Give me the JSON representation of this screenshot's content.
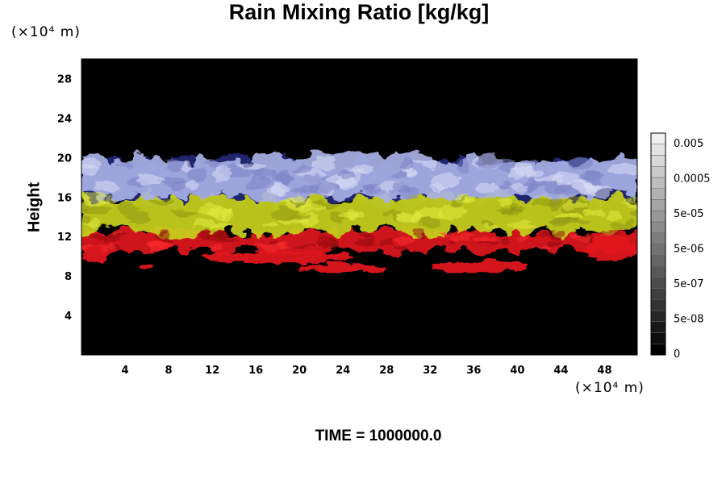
{
  "chart_data": {
    "type": "heatmap",
    "title": "Rain Mixing Ratio [kg/kg]",
    "ylabel": "Height",
    "x_unit_label": "(×10⁴ m)",
    "y_unit_label": "(×10⁴ m)",
    "xlim": [
      0,
      51
    ],
    "ylim": [
      0,
      30
    ],
    "x_ticks": [
      4,
      8,
      12,
      16,
      20,
      24,
      28,
      32,
      36,
      40,
      44,
      48
    ],
    "y_ticks": [
      4,
      8,
      12,
      16,
      20,
      24,
      28
    ],
    "colorbar": {
      "labels": [
        "0",
        "5e-08",
        "5e-07",
        "5e-06",
        "5e-05",
        "0.0005",
        "0.005"
      ],
      "low_color": "#000000",
      "high_color": "#ffffff"
    },
    "bands": [
      {
        "name": "blue-white",
        "color": "#a8b0e6",
        "y_range": [
          16,
          20
        ]
      },
      {
        "name": "yellow",
        "color": "#c8d21c",
        "y_range": [
          12.5,
          16
        ]
      },
      {
        "name": "red",
        "color": "#e0141c",
        "y_range": [
          10.5,
          12.5
        ]
      },
      {
        "name": "dark-blue",
        "color": "#222a7a",
        "y_range": [
          15.5,
          19.5
        ]
      }
    ],
    "red_patches": [
      {
        "x_range": [
          0,
          2.5
        ],
        "y_range": [
          9.5,
          11
        ]
      },
      {
        "x_range": [
          5.5,
          6.5
        ],
        "y_range": [
          8.7,
          9.3
        ]
      },
      {
        "x_range": [
          11,
          25
        ],
        "y_range": [
          9.3,
          10.5
        ]
      },
      {
        "x_range": [
          20,
          28
        ],
        "y_range": [
          8.3,
          9.3
        ]
      },
      {
        "x_range": [
          32,
          41
        ],
        "y_range": [
          8.3,
          9.6
        ]
      },
      {
        "x_range": [
          46,
          51
        ],
        "y_range": [
          9.5,
          12
        ]
      }
    ],
    "grid": false
  },
  "footer": {
    "time_label": "TIME = 1000000.0"
  }
}
